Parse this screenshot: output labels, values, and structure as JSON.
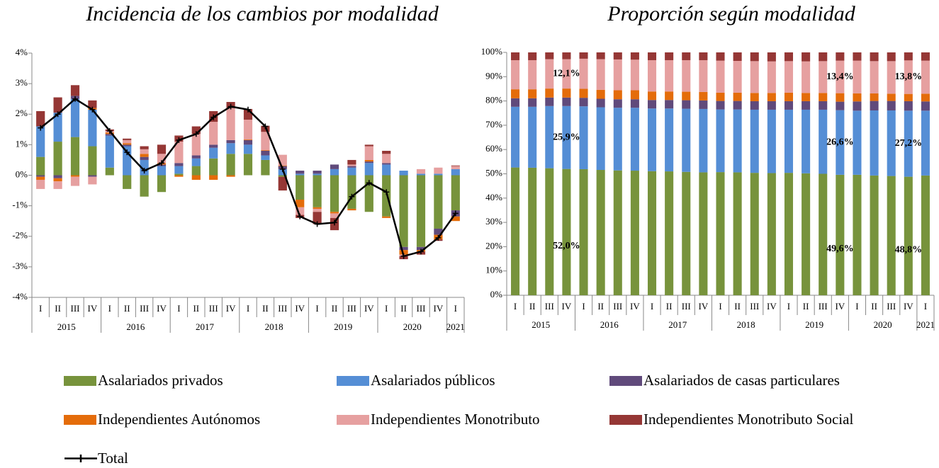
{
  "chart_data": [
    {
      "type": "bar",
      "title": "Incidencia de los cambios por modalidad",
      "category_groups": [
        {
          "label": "2015",
          "categories": [
            "I",
            "II",
            "III",
            "IV"
          ]
        },
        {
          "label": "2016",
          "categories": [
            "I",
            "II",
            "III",
            "IV"
          ]
        },
        {
          "label": "2017",
          "categories": [
            "I",
            "II",
            "III",
            "IV"
          ]
        },
        {
          "label": "2018",
          "categories": [
            "I",
            "II",
            "III",
            "IV"
          ]
        },
        {
          "label": "2019",
          "categories": [
            "I",
            "II",
            "III",
            "IV"
          ]
        },
        {
          "label": "2020",
          "categories": [
            "I",
            "II",
            "III",
            "IV"
          ]
        },
        {
          "label": "2021",
          "categories": [
            "I"
          ]
        }
      ],
      "ylim": [
        -4,
        4
      ],
      "yticks": [
        {
          "value": -4,
          "label": "-4%"
        },
        {
          "value": -3,
          "label": "-3%"
        },
        {
          "value": -2,
          "label": "-2%"
        },
        {
          "value": -1,
          "label": "-1%"
        },
        {
          "value": 0,
          "label": "0%"
        },
        {
          "value": 1,
          "label": "1%"
        },
        {
          "value": 2,
          "label": "2%"
        },
        {
          "value": 3,
          "label": "3%"
        },
        {
          "value": 4,
          "label": "4%"
        }
      ],
      "series": [
        {
          "name": "Asalariados privados",
          "color": "#77933c",
          "values": [
            0.6,
            1.1,
            1.25,
            0.95,
            0.25,
            -0.45,
            -0.7,
            -0.55,
            0.05,
            0.3,
            0.55,
            0.7,
            0.7,
            0.5,
            -0.05,
            -0.8,
            -1.05,
            -1.2,
            -1.1,
            -1.2,
            -1.35,
            -2.35,
            -2.35,
            -1.75,
            -1.15
          ]
        },
        {
          "name": "Asalariados públicos",
          "color": "#558ed5",
          "values": [
            1.0,
            0.95,
            1.25,
            1.2,
            1.05,
            0.95,
            0.5,
            0.3,
            0.25,
            0.25,
            0.35,
            0.35,
            0.3,
            0.15,
            0.2,
            0.05,
            0.05,
            0.2,
            0.25,
            0.4,
            0.35,
            0.15,
            0.05,
            0.05,
            0.2
          ]
        },
        {
          "name": "Asalariados de casas particulares",
          "color": "#604a7b",
          "values": [
            -0.05,
            -0.1,
            0.1,
            -0.05,
            0.05,
            0.05,
            0.1,
            0.05,
            0.1,
            0.1,
            0.1,
            0.1,
            0.15,
            0.15,
            0.1,
            0.1,
            0.1,
            0.15,
            0.05,
            0.05,
            0.05,
            -0.1,
            -0.1,
            -0.2,
            -0.2
          ]
        },
        {
          "name": "Independientes Autónomos",
          "color": "#e46c0a",
          "values": [
            -0.1,
            -0.1,
            -0.05,
            0.05,
            0.05,
            0.05,
            0.1,
            0.05,
            -0.05,
            -0.15,
            -0.15,
            -0.05,
            0.02,
            0.02,
            0.02,
            -0.25,
            -0.05,
            -0.05,
            -0.05,
            0.05,
            -0.05,
            -0.15,
            -0.05,
            -0.15,
            -0.15
          ]
        },
        {
          "name": "Independientes Monotributo",
          "color": "#e6a0a0",
          "values": [
            -0.3,
            -0.25,
            -0.3,
            -0.25,
            0.05,
            0.1,
            0.15,
            0.3,
            0.7,
            0.7,
            0.75,
            1.05,
            0.65,
            0.6,
            0.35,
            -0.25,
            -0.1,
            -0.15,
            0.05,
            0.45,
            0.3,
            -0.05,
            0.15,
            0.2,
            0.1
          ]
        },
        {
          "name": "Independientes Monotributo Social",
          "color": "#953735",
          "values": [
            0.5,
            0.5,
            0.35,
            0.25,
            0.05,
            0.05,
            0.1,
            0.3,
            0.2,
            0.25,
            0.35,
            0.2,
            0.35,
            0.2,
            -0.45,
            -0.1,
            -0.4,
            -0.4,
            0.15,
            0.05,
            0.1,
            -0.1,
            -0.1,
            -0.05,
            0.02
          ]
        },
        {
          "name": "Total",
          "type": "line",
          "color": "#000000",
          "values": [
            1.55,
            2.0,
            2.5,
            2.15,
            1.45,
            0.75,
            0.15,
            0.4,
            1.15,
            1.35,
            1.9,
            2.25,
            2.15,
            1.6,
            0.2,
            -1.35,
            -1.6,
            -1.55,
            -0.7,
            -0.25,
            -0.55,
            -2.65,
            -2.5,
            -2.05,
            -1.25
          ]
        }
      ]
    },
    {
      "type": "bar",
      "title": "Proporción según modalidad",
      "category_groups": [
        {
          "label": "2015",
          "categories": [
            "I",
            "II",
            "III",
            "IV"
          ]
        },
        {
          "label": "2016",
          "categories": [
            "I",
            "II",
            "III",
            "IV"
          ]
        },
        {
          "label": "2017",
          "categories": [
            "I",
            "II",
            "III",
            "IV"
          ]
        },
        {
          "label": "2018",
          "categories": [
            "I",
            "II",
            "III",
            "IV"
          ]
        },
        {
          "label": "2019",
          "categories": [
            "I",
            "II",
            "III",
            "IV"
          ]
        },
        {
          "label": "2020",
          "categories": [
            "I",
            "II",
            "III",
            "IV"
          ]
        },
        {
          "label": "2021",
          "categories": [
            "I"
          ]
        }
      ],
      "ylim": [
        0,
        100
      ],
      "yticks": [
        {
          "value": 0,
          "label": "0%"
        },
        {
          "value": 10,
          "label": "10%"
        },
        {
          "value": 20,
          "label": "20%"
        },
        {
          "value": 30,
          "label": "30%"
        },
        {
          "value": 40,
          "label": "40%"
        },
        {
          "value": 50,
          "label": "50%"
        },
        {
          "value": 60,
          "label": "60%"
        },
        {
          "value": 70,
          "label": "70%"
        },
        {
          "value": 80,
          "label": "80%"
        },
        {
          "value": 90,
          "label": "90%"
        },
        {
          "value": 100,
          "label": "100%"
        }
      ],
      "series": [
        {
          "color": "#77933c",
          "values": [
            52.6,
            52.5,
            52.3,
            52.0,
            51.9,
            51.6,
            51.4,
            51.3,
            51.1,
            51.0,
            50.8,
            50.6,
            50.7,
            50.6,
            50.4,
            50.3,
            50.4,
            50.2,
            50.0,
            49.6,
            49.6,
            49.3,
            49.1,
            48.8,
            49.3
          ],
          "value_labels": [
            null,
            null,
            null,
            "52,0%",
            null,
            null,
            null,
            null,
            null,
            null,
            null,
            null,
            null,
            null,
            null,
            null,
            null,
            null,
            null,
            "49,6%",
            null,
            null,
            null,
            "48,8%",
            null
          ]
        },
        {
          "color": "#558ed5",
          "values": [
            25.0,
            25.1,
            25.6,
            25.9,
            25.9,
            25.8,
            25.8,
            25.9,
            25.8,
            25.9,
            26.0,
            26.1,
            25.8,
            25.9,
            26.0,
            26.1,
            26.0,
            26.2,
            26.4,
            26.6,
            26.4,
            26.8,
            27.0,
            27.2,
            26.7
          ],
          "value_labels": [
            null,
            null,
            null,
            "25,9%",
            null,
            null,
            null,
            null,
            null,
            null,
            null,
            null,
            null,
            null,
            null,
            null,
            null,
            null,
            null,
            "26,6%",
            null,
            null,
            null,
            "27,2%",
            null
          ]
        },
        {
          "color": "#604a7b",
          "values": [
            3.5,
            3.5,
            3.5,
            3.5,
            3.5,
            3.5,
            3.5,
            3.5,
            3.5,
            3.5,
            3.5,
            3.5,
            3.5,
            3.5,
            3.5,
            3.5,
            3.5,
            3.5,
            3.5,
            3.5,
            3.8,
            3.9,
            3.9,
            3.9,
            3.8
          ]
        },
        {
          "color": "#e46c0a",
          "values": [
            3.7,
            3.7,
            3.7,
            3.7,
            3.7,
            3.7,
            3.7,
            3.7,
            3.5,
            3.5,
            3.5,
            3.5,
            3.4,
            3.4,
            3.4,
            3.4,
            3.5,
            3.4,
            3.4,
            3.5,
            3.3,
            3.1,
            3.0,
            3.0,
            3.2
          ]
        },
        {
          "color": "#e6a0a0",
          "values": [
            12.0,
            12.0,
            12.1,
            12.1,
            12.4,
            12.6,
            12.7,
            12.6,
            12.9,
            12.9,
            13.0,
            13.1,
            13.2,
            13.1,
            13.1,
            13.0,
            13.0,
            13.0,
            13.1,
            13.4,
            13.5,
            13.3,
            13.4,
            13.8,
            13.6
          ],
          "value_labels": [
            null,
            null,
            null,
            "12,1%",
            null,
            null,
            null,
            null,
            null,
            null,
            null,
            null,
            null,
            null,
            null,
            null,
            null,
            null,
            null,
            "13,4%",
            null,
            null,
            null,
            "13,8%",
            null
          ]
        },
        {
          "color": "#953735",
          "values": [
            3.2,
            3.2,
            2.8,
            2.8,
            2.6,
            2.8,
            2.9,
            3.0,
            3.2,
            3.2,
            3.2,
            3.2,
            3.4,
            3.5,
            3.6,
            3.7,
            3.6,
            3.7,
            3.6,
            3.4,
            3.4,
            3.6,
            3.6,
            3.3,
            3.4
          ]
        }
      ]
    }
  ]
}
